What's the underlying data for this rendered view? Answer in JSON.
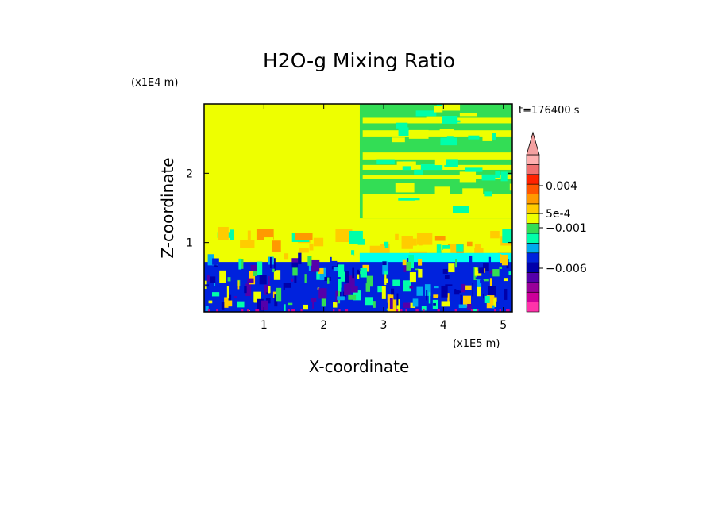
{
  "chart_data": {
    "type": "heatmap",
    "title": "H2O-g Mixing Ratio",
    "xlabel": "X-coordinate",
    "ylabel": "Z-coordinate",
    "x_unit_label": "(x1E5 m)",
    "y_unit_label": "(x1E4 m)",
    "time_label": "t=176400 s",
    "xlim": [
      0,
      5.15
    ],
    "ylim": [
      0,
      3.0
    ],
    "x_ticks": [
      "1",
      "2",
      "3",
      "4",
      "5"
    ],
    "y_ticks": [
      "1",
      "2"
    ],
    "colorbar": {
      "labels": [
        "0.004",
        "5e-4",
        "−0.001",
        "−0.006"
      ],
      "colors": [
        "#ff33aa",
        "#cc0099",
        "#990099",
        "#5500aa",
        "#0000aa",
        "#0022dd",
        "#00aaee",
        "#00ffaa",
        "#33dd55",
        "#eeff00",
        "#ffcc00",
        "#ff9900",
        "#ff5500",
        "#ff2200",
        "#f07070",
        "#ffb0b0"
      ],
      "extend_top": true
    },
    "regions": [
      {
        "x": [
          0,
          2.6
        ],
        "y": [
          1.0,
          3.0
        ],
        "color": "#eeff00",
        "label": "upper-left uniform"
      },
      {
        "x": [
          2.6,
          5.15
        ],
        "y": [
          1.3,
          3.0
        ],
        "color": "#33dd55",
        "label": "upper-right layered"
      },
      {
        "x": [
          0,
          5.15
        ],
        "y": [
          0.7,
          1.1
        ],
        "color": "#ff9900",
        "label": "transition layer"
      },
      {
        "x": [
          0,
          5.15
        ],
        "y": [
          0,
          0.7
        ],
        "color": "#0022dd",
        "label": "boundary layer"
      }
    ]
  }
}
